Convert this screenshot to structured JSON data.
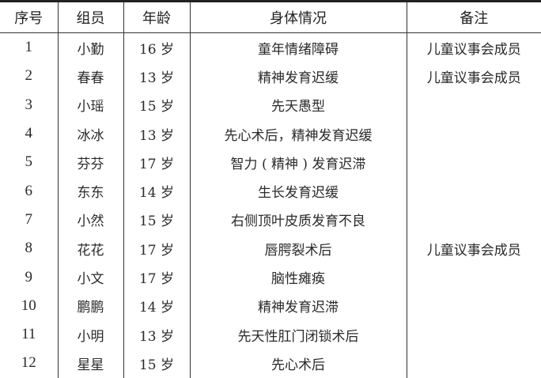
{
  "table": {
    "headers": [
      "序号",
      "组员",
      "年龄",
      "身体情况",
      "备注"
    ],
    "rows": [
      [
        "1",
        "小勤",
        "16 岁",
        "童年情绪障碍",
        "儿童议事会成员"
      ],
      [
        "2",
        "春春",
        "13 岁",
        "精神发育迟缓",
        "儿童议事会成员"
      ],
      [
        "3",
        "小瑶",
        "15 岁",
        "先天愚型",
        ""
      ],
      [
        "4",
        "冰冰",
        "13 岁",
        "先心术后，精神发育迟缓",
        ""
      ],
      [
        "5",
        "芬芬",
        "17 岁",
        "智力 ( 精神 ) 发育迟滞",
        ""
      ],
      [
        "6",
        "东东",
        "14 岁",
        "生长发育迟缓",
        ""
      ],
      [
        "7",
        "小然",
        "15 岁",
        "右侧顶叶皮质发育不良",
        ""
      ],
      [
        "8",
        "花花",
        "17 岁",
        "唇腭裂术后",
        "儿童议事会成员"
      ],
      [
        "9",
        "小文",
        "17 岁",
        "脑性瘫痪",
        ""
      ],
      [
        "10",
        "鹏鹏",
        "14 岁",
        "精神发育迟滞",
        ""
      ],
      [
        "11",
        "小明",
        "13 岁",
        "先天性肛门闭锁术后",
        ""
      ],
      [
        "12",
        "星星",
        "15 岁",
        "先心术后",
        ""
      ]
    ]
  }
}
